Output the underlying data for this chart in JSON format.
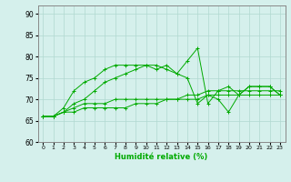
{
  "xlabel": "Humidité relative (%)",
  "ylabel": "",
  "background_color": "#d5f0ec",
  "grid_color": "#b0d8d0",
  "line_color": "#00aa00",
  "xlim": [
    -0.5,
    23.5
  ],
  "ylim": [
    60,
    92
  ],
  "yticks": [
    60,
    65,
    70,
    75,
    80,
    85,
    90
  ],
  "xtick_labels": [
    "0",
    "1",
    "2",
    "3",
    "4",
    "5",
    "6",
    "7",
    "8",
    "9",
    "10",
    "11",
    "12",
    "13",
    "14",
    "15",
    "16",
    "17",
    "18",
    "19",
    "20",
    "21",
    "22",
    "23"
  ],
  "series": [
    [
      66,
      66,
      67,
      67,
      68,
      68,
      68,
      68,
      68,
      69,
      69,
      69,
      70,
      70,
      70,
      70,
      71,
      71,
      71,
      71,
      71,
      71,
      71,
      71
    ],
    [
      66,
      66,
      67,
      68,
      69,
      69,
      69,
      70,
      70,
      70,
      70,
      70,
      70,
      70,
      71,
      71,
      72,
      72,
      72,
      72,
      72,
      72,
      72,
      72
    ],
    [
      66,
      66,
      67,
      69,
      70,
      72,
      74,
      75,
      76,
      77,
      78,
      78,
      77,
      76,
      75,
      69,
      71,
      70,
      67,
      71,
      73,
      73,
      73,
      71
    ],
    [
      66,
      66,
      68,
      72,
      74,
      75,
      77,
      78,
      78,
      78,
      78,
      77,
      78,
      76,
      79,
      82,
      69,
      72,
      73,
      71,
      73,
      73,
      73,
      71
    ]
  ]
}
